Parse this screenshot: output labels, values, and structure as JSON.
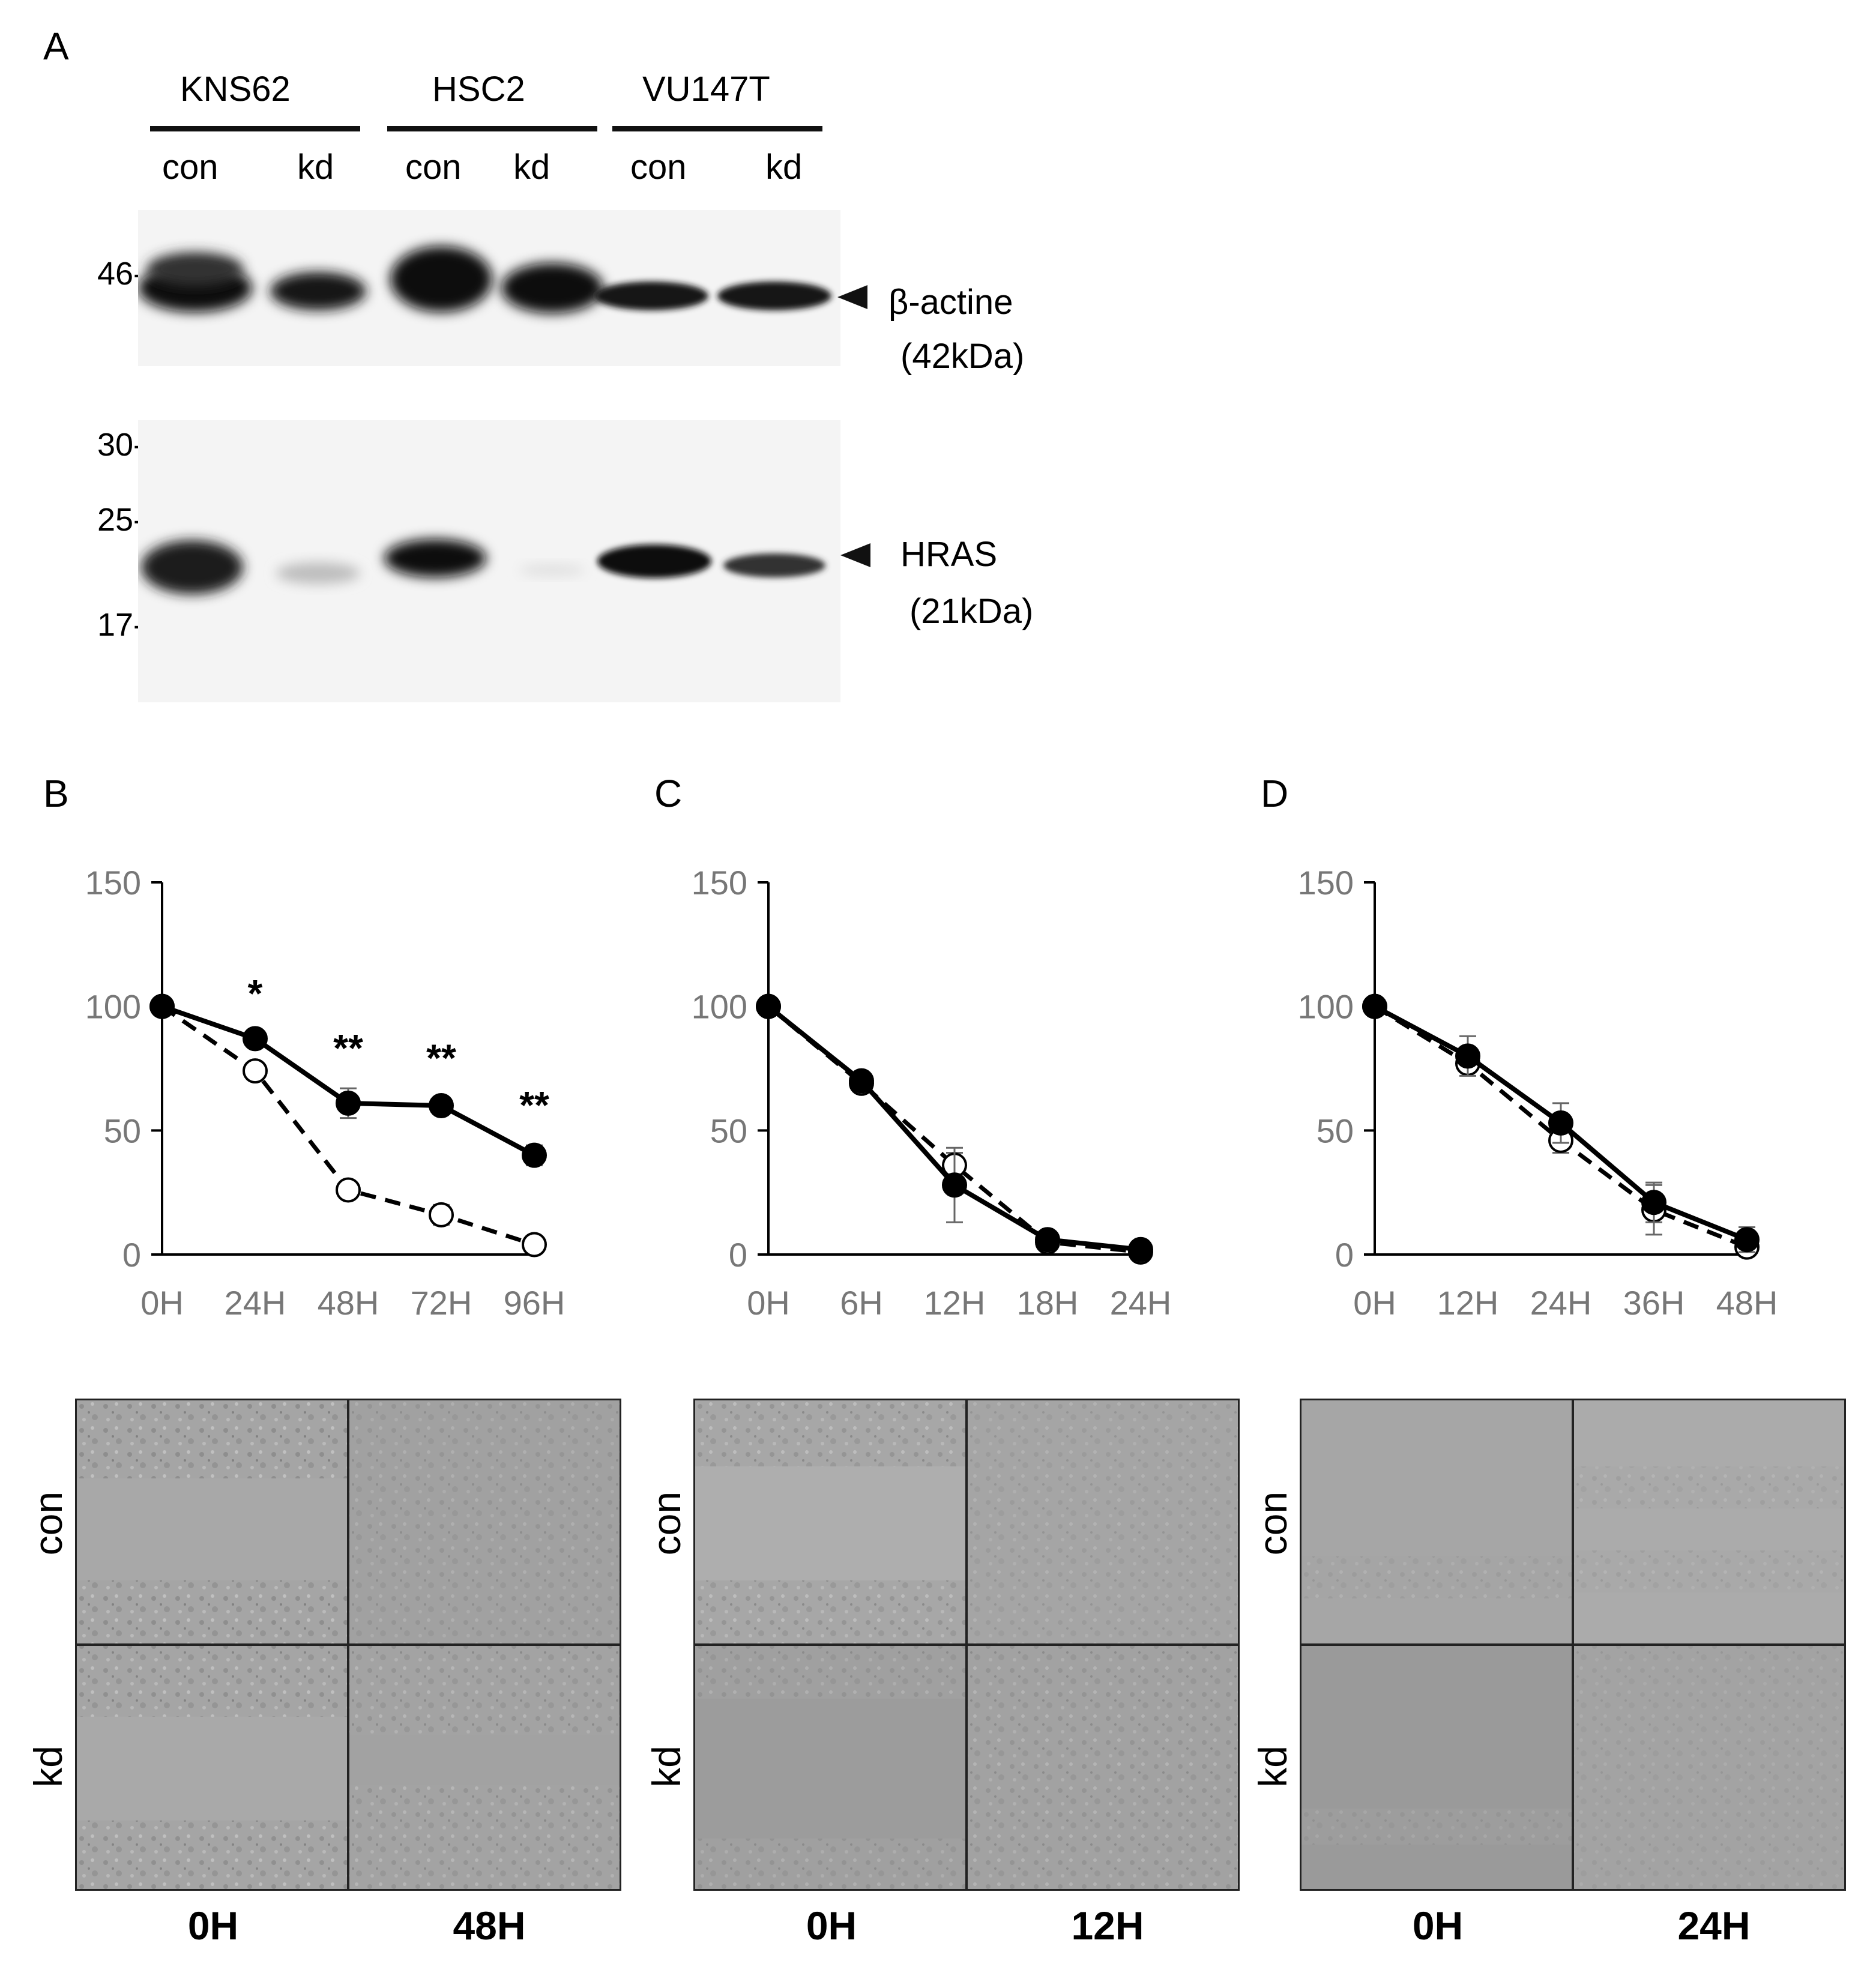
{
  "panels": {
    "A": "A",
    "B": "B",
    "C": "C",
    "D": "D"
  },
  "blot": {
    "cell_lines": [
      "KNS62",
      "HSC2",
      "VU147T"
    ],
    "lanes": [
      "con",
      "kd",
      "con",
      "kd",
      "con",
      "kd"
    ],
    "markers_top": [
      "46-"
    ],
    "markers_bottom": [
      "30-",
      "25-",
      "17-"
    ],
    "band1_name": "β-actine",
    "band1_kda": "(42kDa)",
    "band2_name": "HRAS",
    "band2_kda": "(21kDa)"
  },
  "chart_data": [
    {
      "type": "line",
      "panel": "B",
      "categories": [
        "0H",
        "24H",
        "48H",
        "72H",
        "96H"
      ],
      "ylim": [
        0,
        150
      ],
      "yticks": [
        "150",
        "100",
        "50",
        "0"
      ],
      "series": [
        {
          "style": "solid-filled",
          "values": [
            100,
            87,
            61,
            60,
            40
          ],
          "errors": [
            0,
            2,
            6,
            3,
            4
          ]
        },
        {
          "style": "dashed-open",
          "values": [
            100,
            74,
            26,
            16,
            4
          ],
          "errors": [
            0,
            2,
            3,
            4,
            2
          ]
        }
      ],
      "annotations": [
        "*",
        "**",
        "**",
        "**"
      ],
      "annotation_index": [
        1,
        2,
        3,
        4
      ]
    },
    {
      "type": "line",
      "panel": "C",
      "categories": [
        "0H",
        "6H",
        "12H",
        "18H",
        "24H"
      ],
      "ylim": [
        0,
        150
      ],
      "yticks": [
        "150",
        "100",
        "50",
        "0"
      ],
      "series": [
        {
          "style": "solid-filled",
          "values": [
            100,
            70,
            28,
            6,
            2
          ],
          "errors": [
            0,
            2,
            15,
            2,
            1
          ]
        },
        {
          "style": "dashed-open",
          "values": [
            100,
            69,
            36,
            5,
            1
          ],
          "errors": [
            0,
            2,
            5,
            1,
            1
          ]
        }
      ]
    },
    {
      "type": "line",
      "panel": "D",
      "categories": [
        "0H",
        "12H",
        "24H",
        "36H",
        "48H"
      ],
      "ylim": [
        0,
        150
      ],
      "yticks": [
        "150",
        "100",
        "50",
        "0"
      ],
      "series": [
        {
          "style": "solid-filled",
          "values": [
            100,
            80,
            53,
            21,
            6
          ],
          "errors": [
            0,
            8,
            8,
            8,
            5
          ]
        },
        {
          "style": "dashed-open",
          "values": [
            100,
            77,
            46,
            18,
            3
          ],
          "errors": [
            0,
            3,
            5,
            10,
            3
          ]
        }
      ]
    }
  ],
  "micrographs": {
    "row_labels": [
      "con",
      "kd"
    ],
    "B_times": [
      "0H",
      "48H"
    ],
    "C_times": [
      "0H",
      "12H"
    ],
    "D_times": [
      "0H",
      "24H"
    ]
  },
  "colors": {
    "line": "#000000",
    "axis": "#000000",
    "tick_text": "#777777",
    "micro_bg": "#a9a9a9"
  }
}
